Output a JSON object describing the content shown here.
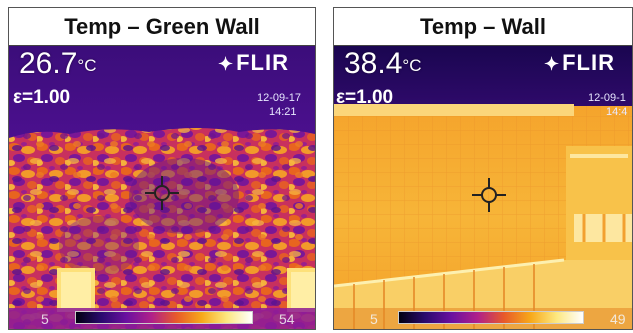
{
  "panels": [
    {
      "title": "Temp – Green Wall",
      "temperature": "26.7",
      "temperature_unit": "°C",
      "emissivity": "ε=1.00",
      "brand": "FLIR",
      "brand_icon": "flir-logo-icon",
      "date": "12-09-17",
      "time": "14:21",
      "scale_min": "5",
      "scale_max": "54"
    },
    {
      "title": "Temp – Wall",
      "temperature": "38.4",
      "temperature_unit": "°C",
      "emissivity": "ε=1.00",
      "brand": "FLIR",
      "brand_icon": "flir-logo-icon",
      "date": "12-09-1",
      "time": "14:4",
      "scale_min": "5",
      "scale_max": "49"
    }
  ],
  "colors": {
    "cold": "#2a0a6e",
    "mid": "#b0208a",
    "warm": "#e85a2a",
    "hot": "#f7b12a",
    "hottest": "#fde880"
  }
}
